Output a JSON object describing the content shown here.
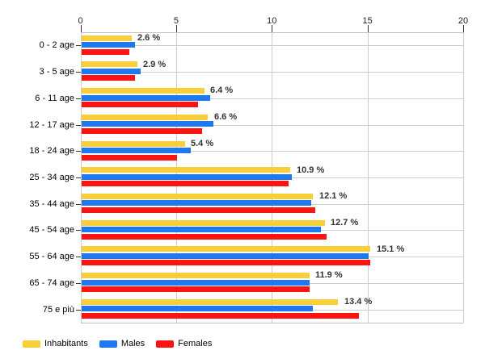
{
  "chart_data": {
    "type": "bar",
    "orientation": "horizontal",
    "title": "",
    "xlabel": "",
    "ylabel": "",
    "categories": [
      "0 - 2 age",
      "3 - 5 age",
      "6 - 11 age",
      "12 - 17 age",
      "18 - 24 age",
      "25 - 34 age",
      "35 - 44 age",
      "45 - 54 age",
      "55 - 64 age",
      "65 - 74 age",
      "75 e più"
    ],
    "series": [
      {
        "name": "Inhabitants",
        "color": "#F8CF39",
        "values": [
          2.6,
          2.9,
          6.4,
          6.6,
          5.4,
          10.9,
          12.1,
          12.7,
          15.1,
          11.9,
          13.4
        ]
      },
      {
        "name": "Males",
        "color": "#1E78F0",
        "values": [
          2.8,
          3.1,
          6.7,
          6.9,
          5.7,
          11.0,
          12.0,
          12.5,
          15.0,
          11.9,
          12.1
        ]
      },
      {
        "name": "Females",
        "color": "#FC1412",
        "values": [
          2.5,
          2.8,
          6.1,
          6.3,
          5.0,
          10.8,
          12.2,
          12.8,
          15.1,
          11.9,
          14.5
        ]
      }
    ],
    "value_labels": [
      "2.6 %",
      "2.9 %",
      "6.4 %",
      "6.6 %",
      "5.4 %",
      "10.9 %",
      "12.1 %",
      "12.7 %",
      "15.1 %",
      "11.9 %",
      "13.4 %"
    ],
    "value_labels_series": "Inhabitants",
    "x_ticks": [
      0,
      5,
      10,
      15,
      20
    ],
    "xlim": [
      0,
      20
    ],
    "grid": true,
    "legend_position": "bottom",
    "axis_position": "top"
  },
  "colors": {
    "background": "#ffffff",
    "gridline": "#cccccc",
    "border": "#c0c0c0",
    "tick": "#333333",
    "category_label": "#000000",
    "value_label": "#333333",
    "axis_label": "#222222"
  }
}
